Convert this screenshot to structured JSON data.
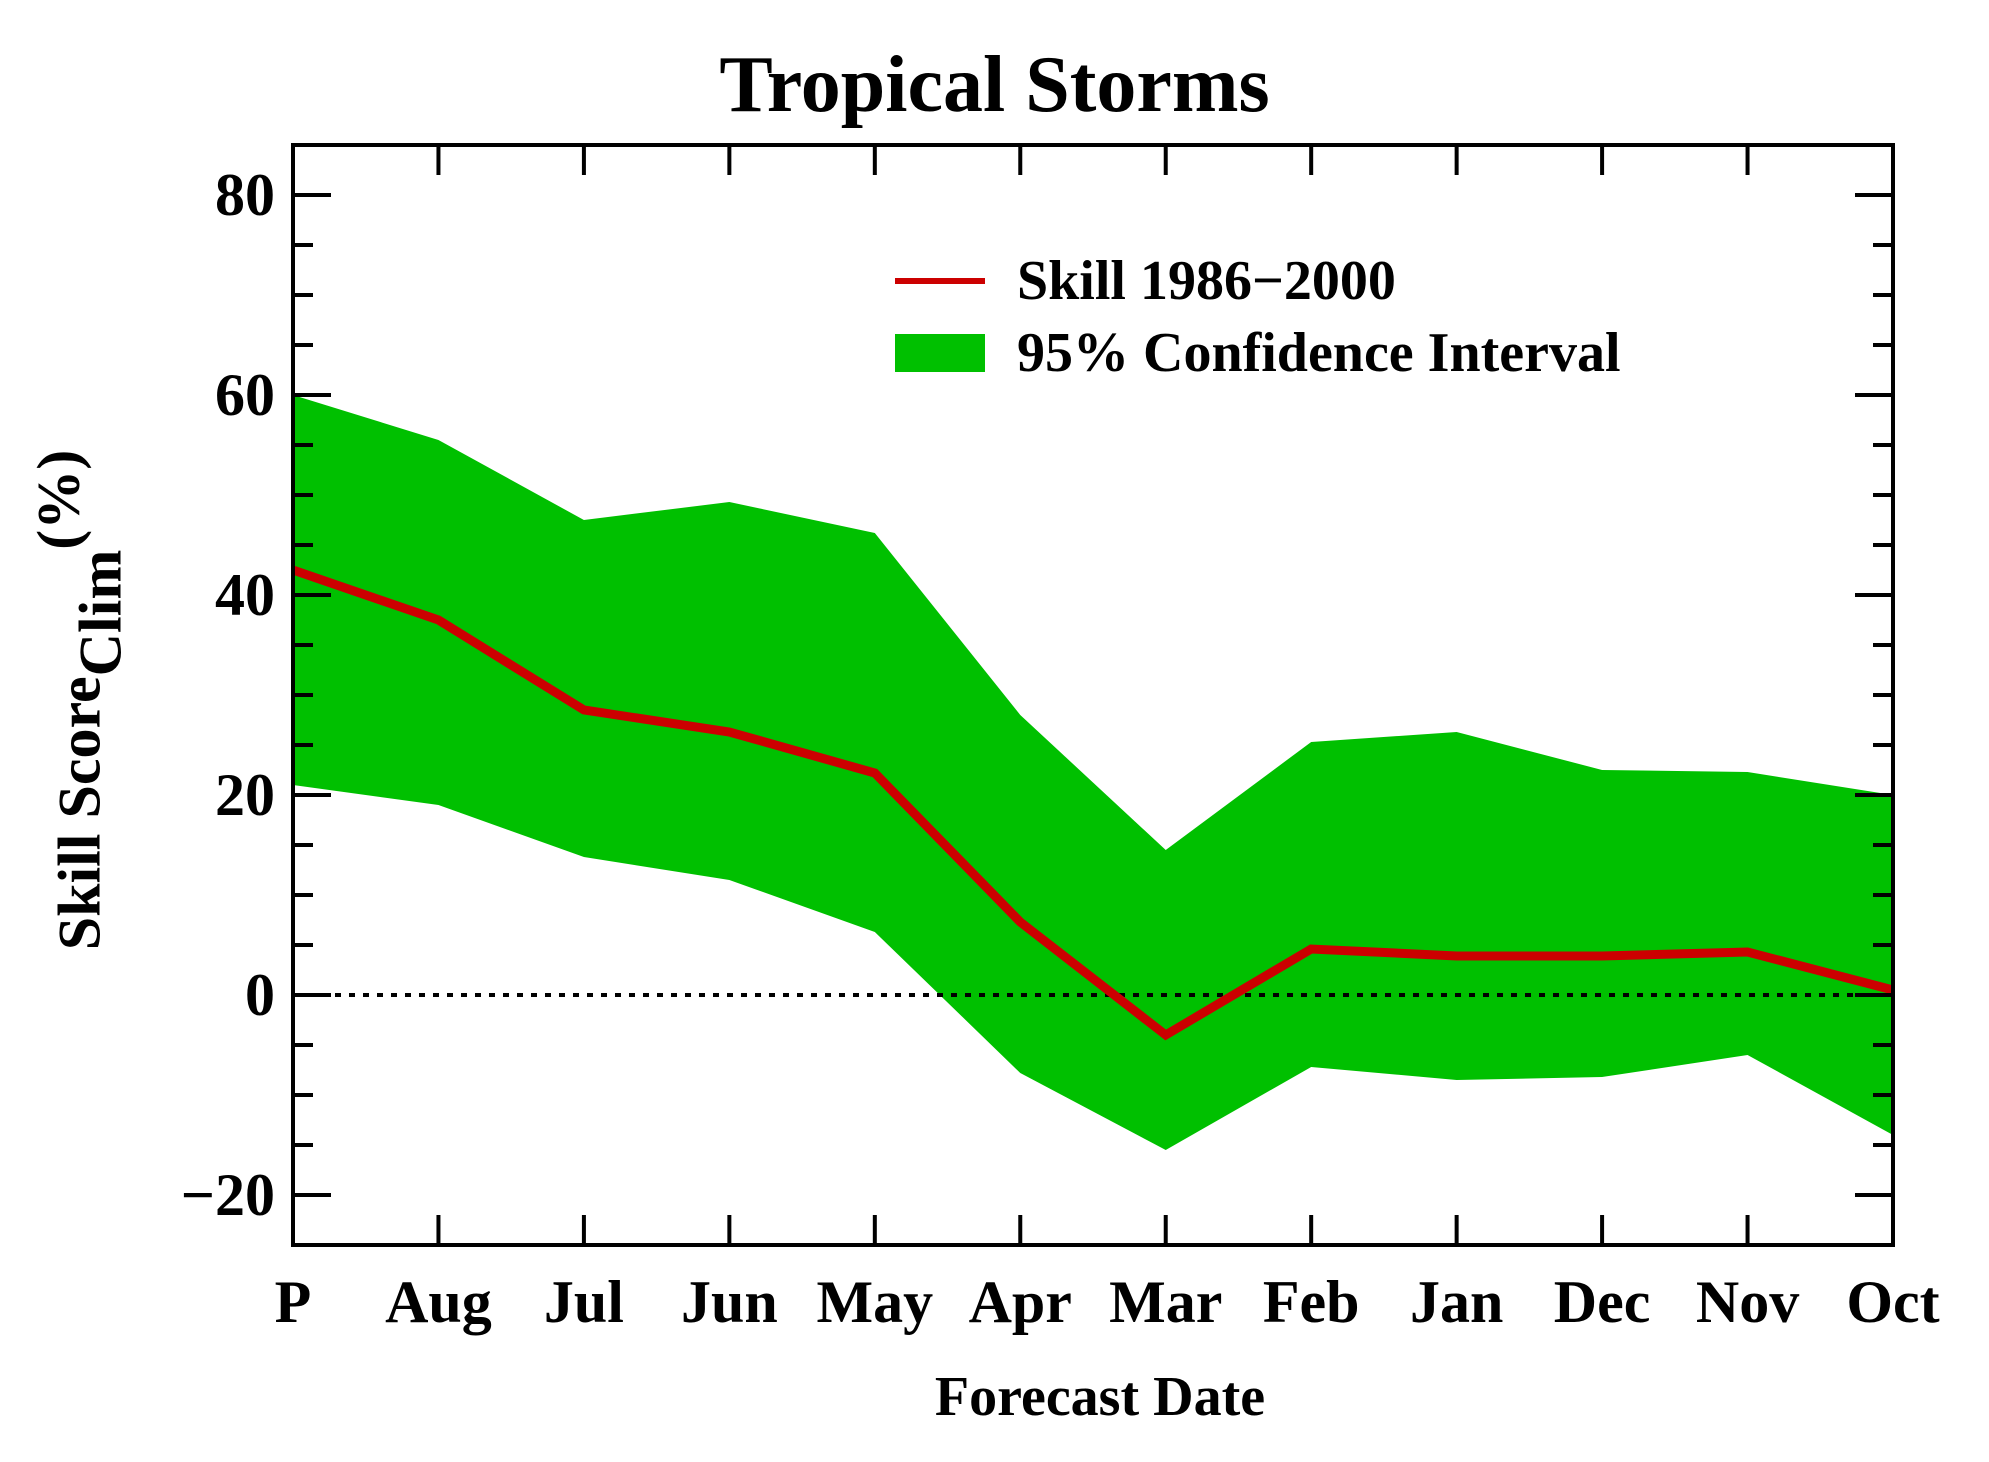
{
  "chart_data": {
    "type": "line",
    "title": "Tropical Storms",
    "xlabel": "Forecast Date",
    "ylabel_main": "Skill Score",
    "ylabel_sub": "Clim",
    "ylabel_unit": "(%)",
    "categories": [
      "P",
      "Aug",
      "Jul",
      "Jun",
      "May",
      "Apr",
      "Mar",
      "Feb",
      "Jan",
      "Dec",
      "Nov",
      "Oct"
    ],
    "ylim": [
      -25,
      85
    ],
    "yticks": [
      -20,
      0,
      20,
      40,
      60,
      80
    ],
    "ytick_labels": [
      "−20",
      "0",
      "20",
      "40",
      "60",
      "80"
    ],
    "reference_line": {
      "y": 0,
      "style": "dotted"
    },
    "series": [
      {
        "name": "Skill 1986−2000",
        "type": "line",
        "color": "#cc0000",
        "values": [
          42.5,
          37.5,
          28.5,
          26.3,
          22.2,
          7.3,
          -4.0,
          4.6,
          3.9,
          3.9,
          4.3,
          0.5
        ]
      },
      {
        "name": "95% Confidence Interval",
        "type": "band",
        "color": "#00c000",
        "upper": [
          60.0,
          55.5,
          47.5,
          49.3,
          46.2,
          28.0,
          14.5,
          25.3,
          26.3,
          22.5,
          22.3,
          20.0
        ],
        "lower": [
          21.0,
          19.0,
          13.8,
          11.5,
          6.3,
          -7.8,
          -15.5,
          -7.2,
          -8.5,
          -8.2,
          -6.0,
          -14.0
        ]
      }
    ],
    "legend_position": "top-right",
    "grid": false
  }
}
